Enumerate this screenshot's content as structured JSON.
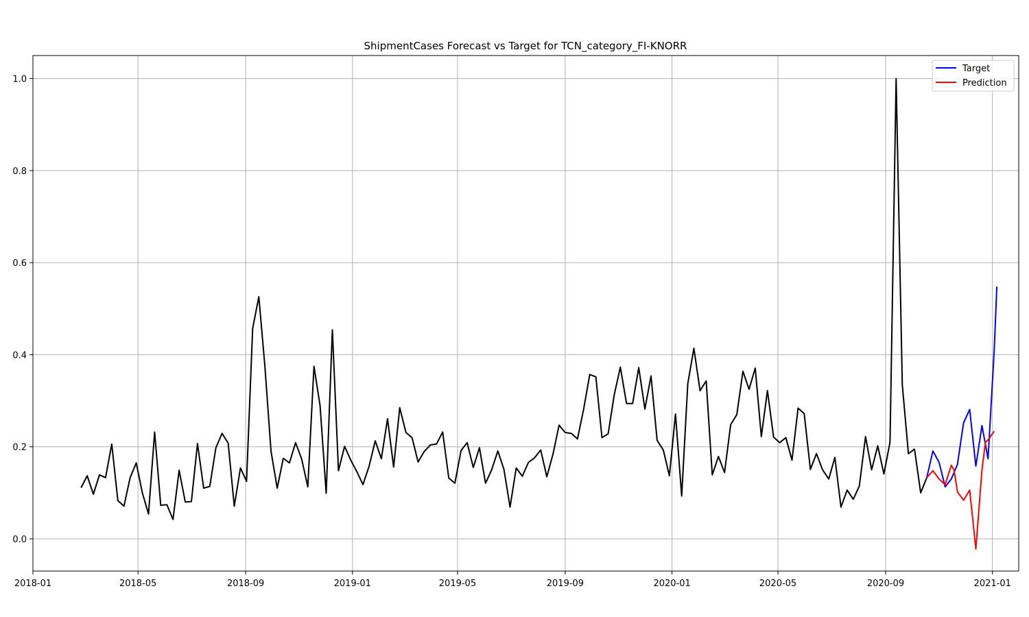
{
  "chart_data": {
    "type": "line",
    "title": "ShipmentCases Forecast vs Target for TCN_category_FI-KNORR",
    "xlabel": "",
    "ylabel": "",
    "grid": true,
    "legend_position": "top-right",
    "xlim": [
      "2018-01-01",
      "2021-01-31"
    ],
    "ylim": [
      -0.07,
      1.05
    ],
    "x_ticks": [
      "2018-01",
      "2018-05",
      "2018-09",
      "2019-01",
      "2019-05",
      "2019-09",
      "2020-01",
      "2020-05",
      "2020-09",
      "2021-01"
    ],
    "y_ticks": [
      "0.0",
      "0.2",
      "0.4",
      "0.6",
      "0.8",
      "1.0"
    ],
    "series": [
      {
        "name": "",
        "color": "#000000",
        "start_date": "2018-02-25",
        "step_days": 7,
        "values": [
          0.111,
          0.137,
          0.097,
          0.139,
          0.133,
          0.206,
          0.083,
          0.071,
          0.133,
          0.165,
          0.1,
          0.054,
          0.232,
          0.073,
          0.074,
          0.042,
          0.149,
          0.08,
          0.081,
          0.207,
          0.11,
          0.114,
          0.198,
          0.229,
          0.208,
          0.071,
          0.154,
          0.125,
          0.457,
          0.526,
          0.374,
          0.19,
          0.11,
          0.175,
          0.165,
          0.209,
          0.173,
          0.113,
          0.375,
          0.289,
          0.099,
          0.454,
          0.148,
          0.201,
          0.171,
          0.146,
          0.118,
          0.158,
          0.213,
          0.174,
          0.261,
          0.156,
          0.285,
          0.231,
          0.22,
          0.167,
          0.19,
          0.204,
          0.206,
          0.232,
          0.132,
          0.121,
          0.192,
          0.209,
          0.155,
          0.198,
          0.121,
          0.15,
          0.191,
          0.151,
          0.069,
          0.154,
          0.136,
          0.166,
          0.176,
          0.193,
          0.135,
          0.184,
          0.247,
          0.231,
          0.229,
          0.217,
          0.281,
          0.357,
          0.352,
          0.22,
          0.228,
          0.313,
          0.373,
          0.294,
          0.294,
          0.372,
          0.282,
          0.354,
          0.214,
          0.193,
          0.137,
          0.271,
          0.093,
          0.337,
          0.414,
          0.322,
          0.343,
          0.139,
          0.179,
          0.144,
          0.248,
          0.27,
          0.364,
          0.325,
          0.371,
          0.222,
          0.322,
          0.221,
          0.209,
          0.22,
          0.171,
          0.284,
          0.272,
          0.151,
          0.185,
          0.15,
          0.13,
          0.177,
          0.069,
          0.106,
          0.086,
          0.115,
          0.222,
          0.15,
          0.202,
          0.141,
          0.21,
          1.0,
          0.335,
          0.185,
          0.195,
          0.1,
          0.133
        ]
      },
      {
        "name": "Target",
        "color": "#0000ff",
        "x": [
          "2020-10-18",
          "2020-10-25",
          "2020-11-01",
          "2020-11-08",
          "2020-11-15",
          "2020-11-22",
          "2020-11-29",
          "2020-12-06",
          "2020-12-13",
          "2020-12-20",
          "2020-12-27",
          "2021-01-03",
          "2021-01-06"
        ],
        "values": [
          0.133,
          0.191,
          0.166,
          0.113,
          0.13,
          0.162,
          0.252,
          0.281,
          0.158,
          0.246,
          0.174,
          0.41,
          0.548
        ]
      },
      {
        "name": "Prediction",
        "color": "#ff0000",
        "x": [
          "2020-10-18",
          "2020-10-25",
          "2020-11-01",
          "2020-11-08",
          "2020-11-15",
          "2020-11-18",
          "2020-11-22",
          "2020-11-29",
          "2020-12-06",
          "2020-12-13",
          "2020-12-20",
          "2020-12-24",
          "2020-12-27",
          "2021-01-03"
        ],
        "values": [
          0.133,
          0.148,
          0.13,
          0.118,
          0.16,
          0.15,
          0.102,
          0.084,
          0.106,
          -0.022,
          0.15,
          0.21,
          0.215,
          0.234
        ]
      }
    ]
  }
}
